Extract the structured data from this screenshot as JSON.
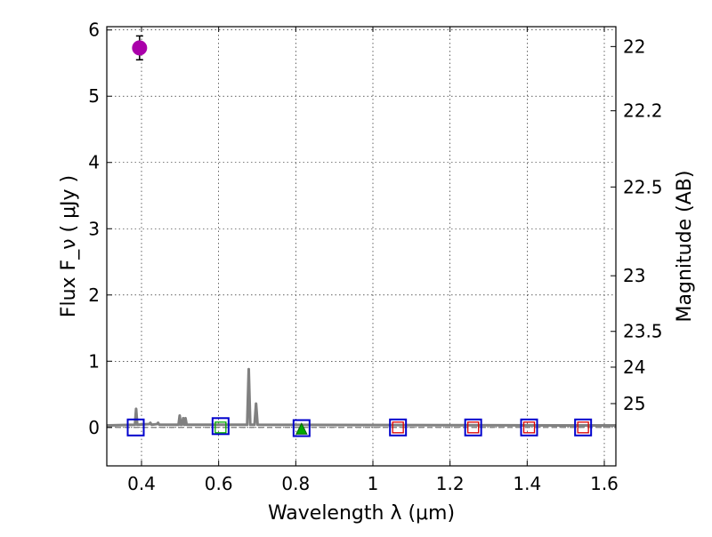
{
  "chart_data": {
    "type": "scatter",
    "title": "",
    "xlabel": "Wavelength  λ (μm)",
    "ylabel": "Flux  F_ν  ( μJy )",
    "ylabel_right": "Magnitude (AB)",
    "xlim": [
      0.31,
      1.63
    ],
    "ylim": [
      -0.58,
      6.05
    ],
    "grid": true,
    "x_ticks": [
      0.4,
      0.6,
      0.8,
      1.0,
      1.2,
      1.4,
      1.6
    ],
    "x_tick_labels": [
      "0.4",
      "0.6",
      "0.8",
      "1",
      "1.2",
      "1.4",
      "1.6"
    ],
    "y_ticks": [
      0,
      1,
      2,
      3,
      4,
      5,
      6
    ],
    "y_tick_labels": [
      "0",
      "1",
      "2",
      "3",
      "4",
      "5",
      "6"
    ],
    "right_ticks": [
      {
        "label": "22",
        "flux": 5.75
      },
      {
        "label": "22.2",
        "flux": 4.78
      },
      {
        "label": "22.5",
        "flux": 3.63
      },
      {
        "label": "23",
        "flux": 2.29
      },
      {
        "label": "23.5",
        "flux": 1.45
      },
      {
        "label": "24",
        "flux": 0.91
      },
      {
        "label": "25",
        "flux": 0.36
      }
    ],
    "series": [
      {
        "name": "detection",
        "marker": "circle",
        "color": "#aa00aa",
        "points": [
          {
            "x": 0.395,
            "y": 5.73,
            "yerr": 0.18
          }
        ]
      },
      {
        "name": "model_photometry",
        "marker": "square-open",
        "color": "#0000cc",
        "points": [
          {
            "x": 0.385,
            "y": 0.0
          },
          {
            "x": 0.605,
            "y": 0.02
          },
          {
            "x": 0.815,
            "y": -0.01
          },
          {
            "x": 1.065,
            "y": 0.0
          },
          {
            "x": 1.26,
            "y": 0.0
          },
          {
            "x": 1.405,
            "y": 0.0
          },
          {
            "x": 1.545,
            "y": 0.0
          }
        ]
      },
      {
        "name": "upper_limits",
        "marker": "square-open",
        "color": "#dd0000",
        "points": [
          {
            "x": 1.065,
            "y": 0.0
          },
          {
            "x": 1.26,
            "y": 0.0
          },
          {
            "x": 1.405,
            "y": 0.0
          },
          {
            "x": 1.545,
            "y": 0.0
          }
        ]
      },
      {
        "name": "green_limits",
        "marker": "square-open",
        "color": "#00aa00",
        "points": [
          {
            "x": 0.605,
            "y": 0.0
          }
        ]
      },
      {
        "name": "green_triangle",
        "marker": "triangle",
        "color": "#00aa00",
        "points": [
          {
            "x": 0.815,
            "y": -0.02
          }
        ]
      },
      {
        "name": "model_spectrum",
        "marker": "line",
        "color": "#808080",
        "points": [
          {
            "x": 0.31,
            "y": 0.03
          },
          {
            "x": 0.383,
            "y": 0.04
          },
          {
            "x": 0.386,
            "y": 0.28
          },
          {
            "x": 0.389,
            "y": 0.04
          },
          {
            "x": 0.42,
            "y": 0.05
          },
          {
            "x": 0.423,
            "y": 0.07
          },
          {
            "x": 0.426,
            "y": 0.04
          },
          {
            "x": 0.44,
            "y": 0.05
          },
          {
            "x": 0.443,
            "y": 0.07
          },
          {
            "x": 0.446,
            "y": 0.04
          },
          {
            "x": 0.496,
            "y": 0.04
          },
          {
            "x": 0.499,
            "y": 0.18
          },
          {
            "x": 0.502,
            "y": 0.04
          },
          {
            "x": 0.505,
            "y": 0.04
          },
          {
            "x": 0.508,
            "y": 0.14
          },
          {
            "x": 0.511,
            "y": 0.04
          },
          {
            "x": 0.512,
            "y": 0.04
          },
          {
            "x": 0.514,
            "y": 0.14
          },
          {
            "x": 0.517,
            "y": 0.04
          },
          {
            "x": 0.674,
            "y": 0.04
          },
          {
            "x": 0.678,
            "y": 0.88
          },
          {
            "x": 0.682,
            "y": 0.04
          },
          {
            "x": 0.693,
            "y": 0.04
          },
          {
            "x": 0.697,
            "y": 0.36
          },
          {
            "x": 0.701,
            "y": 0.04
          },
          {
            "x": 1.63,
            "y": 0.03
          }
        ]
      }
    ],
    "reference_lines": [
      {
        "y": 0.0,
        "style": "dashed",
        "color": "#777777"
      }
    ]
  }
}
